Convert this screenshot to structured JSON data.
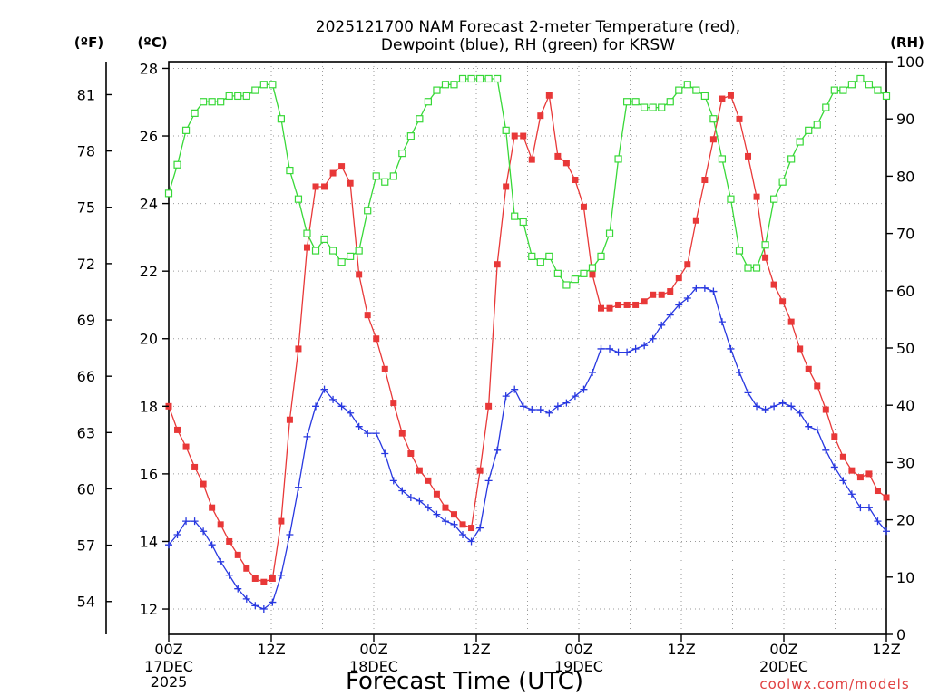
{
  "chart_data": {
    "type": "line",
    "title": {
      "line1": "2025121700 NAM Forecast 2-meter Temperature (red),",
      "line2": "Dewpoint (blue), RH (green) for KRSW"
    },
    "xlabel": "Forecast Time (UTC)",
    "unit_labels": {
      "fahrenheit": "(ºF)",
      "celsius": "(ºC)",
      "rh": "(RH)"
    },
    "credit": "coolwx.com/models",
    "x_range_hours": [
      0,
      84
    ],
    "y_celsius_range": [
      11.25,
      28.2
    ],
    "y_rh_range": [
      0,
      100
    ],
    "x_ticks": [
      {
        "hour": 0,
        "label": "00Z",
        "date": "17DEC",
        "year": "2025"
      },
      {
        "hour": 12,
        "label": "12Z",
        "date": "",
        "year": ""
      },
      {
        "hour": 24,
        "label": "00Z",
        "date": "18DEC",
        "year": ""
      },
      {
        "hour": 36,
        "label": "12Z",
        "date": "",
        "year": ""
      },
      {
        "hour": 48,
        "label": "00Z",
        "date": "19DEC",
        "year": ""
      },
      {
        "hour": 60,
        "label": "12Z",
        "date": "",
        "year": ""
      },
      {
        "hour": 72,
        "label": "00Z",
        "date": "20DEC",
        "year": ""
      },
      {
        "hour": 84,
        "label": "12Z",
        "date": "",
        "year": ""
      }
    ],
    "celsius_ticks": [
      12,
      14,
      16,
      18,
      20,
      22,
      24,
      26,
      28
    ],
    "fahrenheit_ticks": [
      54,
      57,
      60,
      63,
      66,
      69,
      72,
      75,
      78,
      81
    ],
    "rh_ticks": [
      0,
      10,
      20,
      30,
      40,
      50,
      60,
      70,
      80,
      90,
      100
    ],
    "grid": true,
    "series": [
      {
        "key": "temperature",
        "color": "#e83838",
        "marker": "filled-square",
        "unit": "celsius",
        "values": [
          18.0,
          17.3,
          16.8,
          16.2,
          15.7,
          15.0,
          14.5,
          14.0,
          13.6,
          13.2,
          12.9,
          12.8,
          12.9,
          14.6,
          17.6,
          19.7,
          22.7,
          24.5,
          24.5,
          24.9,
          25.1,
          24.6,
          21.9,
          20.7,
          20.0,
          19.1,
          18.1,
          17.2,
          16.6,
          16.1,
          15.8,
          15.4,
          15.0,
          14.8,
          14.5,
          14.4,
          16.1,
          18.0,
          22.2,
          24.5,
          26.0,
          26.0,
          25.3,
          26.6,
          27.2,
          25.4,
          25.2,
          24.7,
          23.9,
          21.9,
          20.9,
          20.9,
          21.0,
          21.0,
          21.0,
          21.1,
          21.3,
          21.3,
          21.4,
          21.8,
          22.2,
          23.5,
          24.7,
          25.9,
          27.1,
          27.2,
          26.5,
          25.4,
          24.2,
          22.4,
          21.6,
          21.1,
          20.5,
          19.7,
          19.1,
          18.6,
          17.9,
          17.1,
          16.5,
          16.1,
          15.9,
          16.0,
          15.5,
          15.3
        ]
      },
      {
        "key": "dewpoint",
        "color": "#2838e0",
        "marker": "plus",
        "unit": "celsius",
        "values": [
          13.9,
          14.2,
          14.6,
          14.6,
          14.3,
          13.9,
          13.4,
          13.0,
          12.6,
          12.3,
          12.1,
          12.0,
          12.2,
          13.0,
          14.2,
          15.6,
          17.1,
          18.0,
          18.5,
          18.2,
          18.0,
          17.8,
          17.4,
          17.2,
          17.2,
          16.6,
          15.8,
          15.5,
          15.3,
          15.2,
          15.0,
          14.8,
          14.6,
          14.5,
          14.2,
          14.0,
          14.4,
          15.8,
          16.7,
          18.3,
          18.5,
          18.0,
          17.9,
          17.9,
          17.8,
          18.0,
          18.1,
          18.3,
          18.5,
          19.0,
          19.7,
          19.7,
          19.6,
          19.6,
          19.7,
          19.8,
          20.0,
          20.4,
          20.7,
          21.0,
          21.2,
          21.5,
          21.5,
          21.4,
          20.5,
          19.7,
          19.0,
          18.4,
          18.0,
          17.9,
          18.0,
          18.1,
          18.0,
          17.8,
          17.4,
          17.3,
          16.7,
          16.2,
          15.8,
          15.4,
          15.0,
          15.0,
          14.6,
          14.3
        ]
      },
      {
        "key": "rh",
        "color": "#38d838",
        "marker": "open-square",
        "unit": "rh",
        "values": [
          77,
          82,
          88,
          91,
          93,
          93,
          93,
          94,
          94,
          94,
          95,
          96,
          96,
          90,
          81,
          76,
          70,
          67,
          69,
          67,
          65,
          66,
          67,
          74,
          80,
          79,
          80,
          84,
          87,
          90,
          93,
          95,
          96,
          96,
          97,
          97,
          97,
          97,
          97,
          88,
          73,
          72,
          66,
          65,
          66,
          63,
          61,
          62,
          63,
          64,
          66,
          70,
          83,
          93,
          93,
          92,
          92,
          92,
          93,
          95,
          96,
          95,
          94,
          90,
          83,
          76,
          67,
          64,
          64,
          68,
          76,
          79,
          83,
          86,
          88,
          89,
          92,
          95,
          95,
          96,
          97,
          96,
          95,
          94
        ]
      }
    ]
  }
}
